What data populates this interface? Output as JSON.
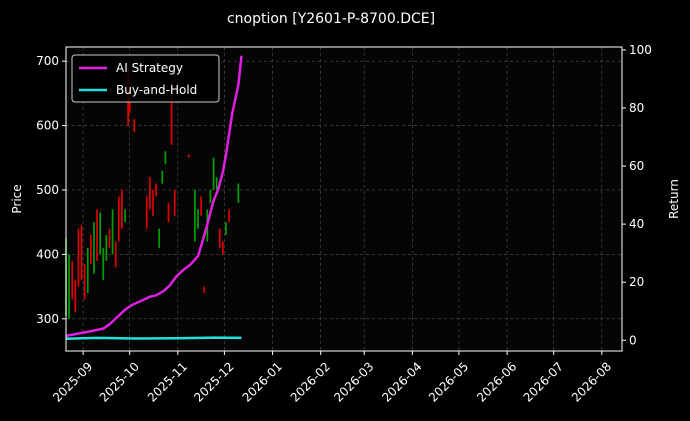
{
  "chart_data": {
    "type": "line",
    "title": "cnoption [Y2601-P-8700.DCE]",
    "y_left_label": "Price",
    "y_right_label": "Return",
    "x_range": [
      "2025-08-21",
      "2026-08-14"
    ],
    "x_ticks": [
      "2025-09-01",
      "2025-10-01",
      "2025-11-01",
      "2025-12-01",
      "2026-01-01",
      "2026-02-01",
      "2026-03-01",
      "2026-04-01",
      "2026-05-01",
      "2026-06-01",
      "2026-07-01",
      "2026-08-01"
    ],
    "x_tick_labels": [
      "2025-09",
      "2025-10",
      "2025-11",
      "2025-12",
      "2026-01",
      "2026-02",
      "2026-03",
      "2026-04",
      "2026-05",
      "2026-06",
      "2026-07",
      "2026-08"
    ],
    "y_left_range": [
      250,
      722
    ],
    "y_left_ticks": [
      300,
      400,
      500,
      600,
      700
    ],
    "y_right_range": [
      -3.7,
      101
    ],
    "y_right_ticks": [
      0,
      20,
      40,
      60,
      80,
      100
    ],
    "grid": true,
    "legend_position": "top-left",
    "candles": {
      "up_color": "#00a000",
      "down_color": "#e00000",
      "bars": [
        {
          "date": "2025-08-21",
          "low": 305,
          "high": 425,
          "dir": "up"
        },
        {
          "date": "2025-08-23",
          "low": 300,
          "high": 400,
          "dir": "up"
        },
        {
          "date": "2025-08-25",
          "low": 330,
          "high": 390,
          "dir": "down"
        },
        {
          "date": "2025-08-27",
          "low": 310,
          "high": 360,
          "dir": "down"
        },
        {
          "date": "2025-08-29",
          "low": 350,
          "high": 440,
          "dir": "down"
        },
        {
          "date": "2025-08-31",
          "low": 360,
          "high": 445,
          "dir": "down"
        },
        {
          "date": "2025-09-02",
          "low": 330,
          "high": 385,
          "dir": "down"
        },
        {
          "date": "2025-09-04",
          "low": 340,
          "high": 410,
          "dir": "up"
        },
        {
          "date": "2025-09-06",
          "low": 385,
          "high": 430,
          "dir": "down"
        },
        {
          "date": "2025-09-08",
          "low": 370,
          "high": 450,
          "dir": "up"
        },
        {
          "date": "2025-09-10",
          "low": 390,
          "high": 470,
          "dir": "down"
        },
        {
          "date": "2025-09-12",
          "low": 400,
          "high": 465,
          "dir": "up"
        },
        {
          "date": "2025-09-14",
          "low": 360,
          "high": 410,
          "dir": "up"
        },
        {
          "date": "2025-09-16",
          "low": 390,
          "high": 430,
          "dir": "up"
        },
        {
          "date": "2025-09-18",
          "low": 410,
          "high": 440,
          "dir": "down"
        },
        {
          "date": "2025-09-20",
          "low": 400,
          "high": 470,
          "dir": "up"
        },
        {
          "date": "2025-09-22",
          "low": 380,
          "high": 420,
          "dir": "down"
        },
        {
          "date": "2025-09-24",
          "low": 420,
          "high": 490,
          "dir": "down"
        },
        {
          "date": "2025-09-26",
          "low": 440,
          "high": 500,
          "dir": "down"
        },
        {
          "date": "2025-09-28",
          "low": 450,
          "high": 470,
          "dir": "up"
        },
        {
          "date": "2025-09-30",
          "low": 600,
          "high": 690,
          "dir": "down"
        },
        {
          "date": "2025-10-01",
          "low": 620,
          "high": 660,
          "dir": "down"
        },
        {
          "date": "2025-10-04",
          "low": 590,
          "high": 610,
          "dir": "down"
        },
        {
          "date": "2025-10-12",
          "low": 440,
          "high": 490,
          "dir": "down"
        },
        {
          "date": "2025-10-14",
          "low": 470,
          "high": 520,
          "dir": "down"
        },
        {
          "date": "2025-10-16",
          "low": 460,
          "high": 500,
          "dir": "down"
        },
        {
          "date": "2025-10-18",
          "low": 490,
          "high": 510,
          "dir": "down"
        },
        {
          "date": "2025-10-20",
          "low": 410,
          "high": 440,
          "dir": "up"
        },
        {
          "date": "2025-10-22",
          "low": 510,
          "high": 530,
          "dir": "up"
        },
        {
          "date": "2025-10-24",
          "low": 540,
          "high": 560,
          "dir": "up"
        },
        {
          "date": "2025-10-26",
          "low": 450,
          "high": 480,
          "dir": "down"
        },
        {
          "date": "2025-10-28",
          "low": 570,
          "high": 670,
          "dir": "down"
        },
        {
          "date": "2025-10-30",
          "low": 460,
          "high": 500,
          "dir": "down"
        },
        {
          "date": "2025-11-08",
          "low": 550,
          "high": 555,
          "dir": "down"
        },
        {
          "date": "2025-11-12",
          "low": 420,
          "high": 500,
          "dir": "up"
        },
        {
          "date": "2025-11-14",
          "low": 440,
          "high": 470,
          "dir": "up"
        },
        {
          "date": "2025-11-16",
          "low": 460,
          "high": 490,
          "dir": "down"
        },
        {
          "date": "2025-11-18",
          "low": 340,
          "high": 350,
          "dir": "down"
        },
        {
          "date": "2025-11-20",
          "low": 420,
          "high": 470,
          "dir": "up"
        },
        {
          "date": "2025-11-22",
          "low": 480,
          "high": 500,
          "dir": "up"
        },
        {
          "date": "2025-11-24",
          "low": 500,
          "high": 550,
          "dir": "up"
        },
        {
          "date": "2025-11-26",
          "low": 500,
          "high": 520,
          "dir": "up"
        },
        {
          "date": "2025-11-28",
          "low": 410,
          "high": 440,
          "dir": "down"
        },
        {
          "date": "2025-11-30",
          "low": 400,
          "high": 420,
          "dir": "down"
        },
        {
          "date": "2025-12-02",
          "low": 430,
          "high": 450,
          "dir": "up"
        },
        {
          "date": "2025-12-04",
          "low": 450,
          "high": 470,
          "dir": "down"
        },
        {
          "date": "2025-12-10",
          "low": 480,
          "high": 510,
          "dir": "up"
        }
      ]
    },
    "series": [
      {
        "name": "AI Strategy",
        "axis": "right",
        "color": "#e020e0",
        "x": [
          "2025-08-21",
          "2025-08-28",
          "2025-09-05",
          "2025-09-14",
          "2025-09-18",
          "2025-09-23",
          "2025-09-28",
          "2025-10-02",
          "2025-10-08",
          "2025-10-14",
          "2025-10-18",
          "2025-10-23",
          "2025-10-27",
          "2025-10-31",
          "2025-11-04",
          "2025-11-09",
          "2025-11-14",
          "2025-11-18",
          "2025-11-21",
          "2025-11-24",
          "2025-11-27",
          "2025-11-30",
          "2025-12-02",
          "2025-12-06",
          "2025-12-10",
          "2025-12-12"
        ],
        "values": [
          1.5,
          2.2,
          3.0,
          4.0,
          5.5,
          8.0,
          10.5,
          12.0,
          13.5,
          15.0,
          15.5,
          17.0,
          19.0,
          22.0,
          24.0,
          26.0,
          29.0,
          36.0,
          42.0,
          48.0,
          52.0,
          58.0,
          64.0,
          78.0,
          88.0,
          98.0
        ]
      },
      {
        "name": "Buy-and-Hold",
        "axis": "right",
        "color": "#20e0e0",
        "x": [
          "2025-08-21",
          "2025-09-10",
          "2025-10-05",
          "2025-11-01",
          "2025-11-25",
          "2025-12-12"
        ],
        "values": [
          0.5,
          0.8,
          0.6,
          0.7,
          0.9,
          0.8
        ]
      }
    ]
  }
}
